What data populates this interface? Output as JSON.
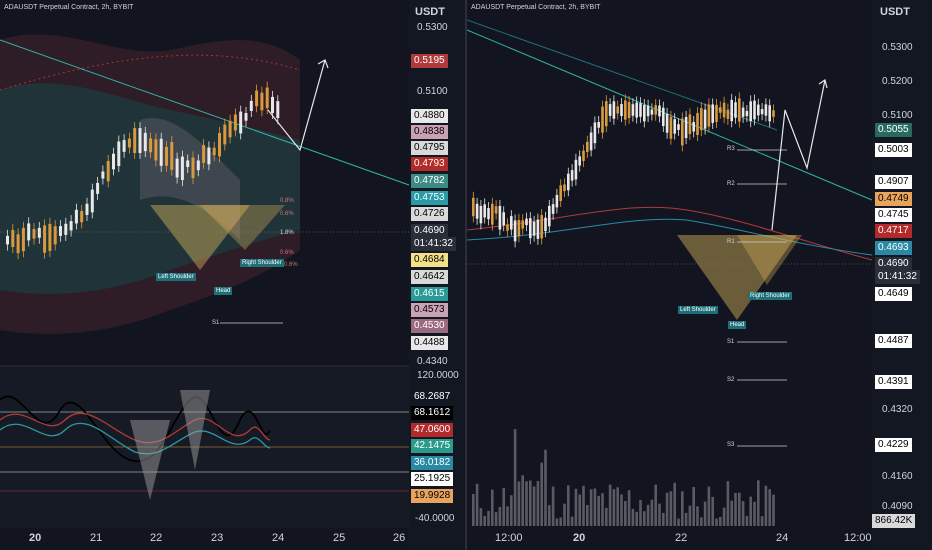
{
  "left": {
    "title": "ADAUSDT Perpetual Contract, 2h, BYBIT",
    "currency": "USDT",
    "price_ticks": [
      "0.5300",
      "0.5100",
      "0.4340"
    ],
    "badges": [
      {
        "value": "0.5195",
        "bg": "#b03a3a",
        "fg": "#ffffff"
      },
      {
        "value": "0.4880",
        "bg": "#e8e8e8",
        "fg": "#000000"
      },
      {
        "value": "0.4838",
        "bg": "#caa1b2",
        "fg": "#000000"
      },
      {
        "value": "0.4795",
        "bg": "#d9d9d9",
        "fg": "#000000"
      },
      {
        "value": "0.4793",
        "bg": "#b32a2a",
        "fg": "#ffffff"
      },
      {
        "value": "0.4782",
        "bg": "#3c8a84",
        "fg": "#ffffff"
      },
      {
        "value": "0.4753",
        "bg": "#2a9aa6",
        "fg": "#ffffff"
      },
      {
        "value": "0.4726",
        "bg": "#d9d9d9",
        "fg": "#000000"
      },
      {
        "value": "0.4690",
        "bg": "#2a2e39",
        "fg": "#ffffff"
      },
      {
        "value": "01:41:32",
        "bg": "#2a2e39",
        "fg": "#ffffff"
      },
      {
        "value": "0.4684",
        "bg": "#f5e08a",
        "fg": "#000000"
      },
      {
        "value": "0.4642",
        "bg": "#d9d9d9",
        "fg": "#000000"
      },
      {
        "value": "0.4615",
        "bg": "#2a9a96",
        "fg": "#ffffff"
      },
      {
        "value": "0.4573",
        "bg": "#c9a2b6",
        "fg": "#000000"
      },
      {
        "value": "0.4530",
        "bg": "#9c6a7e",
        "fg": "#ffffff"
      },
      {
        "value": "0.4488",
        "bg": "#e8e8e8",
        "fg": "#000000"
      }
    ],
    "osc_ticks": [
      "120.0000",
      "-40.0000"
    ],
    "osc_badges": [
      {
        "value": "68.2687",
        "bg": "#131722",
        "fg": "#ffffff"
      },
      {
        "value": "68.1612",
        "bg": "#000000",
        "fg": "#ffffff"
      },
      {
        "value": "47.0600",
        "bg": "#b32a2a",
        "fg": "#ffffff"
      },
      {
        "value": "42.1475",
        "bg": "#2a9a8a",
        "fg": "#ffffff"
      },
      {
        "value": "36.0182",
        "bg": "#2a8aa6",
        "fg": "#ffffff"
      },
      {
        "value": "25.1925",
        "bg": "#ffffff",
        "fg": "#000000"
      },
      {
        "value": "19.9928",
        "bg": "#e8a35c",
        "fg": "#000000"
      }
    ],
    "time_labels": [
      "20",
      "21",
      "22",
      "23",
      "24",
      "25",
      "26"
    ],
    "patterns": {
      "left_shoulder": "Left Shoulder",
      "head": "Head",
      "right_shoulder": "Right Shoulder",
      "s1": "S1"
    },
    "pct": [
      "0.8%",
      "0.6%",
      "1.8%",
      "0.6%",
      "0.6%"
    ]
  },
  "right": {
    "title": "ADAUSDT Perpetual Contract, 2h, BYBIT",
    "currency": "USDT",
    "price_ticks": [
      "0.5300",
      "0.5200",
      "0.5100",
      "0.4320",
      "0.4160",
      "0.4090"
    ],
    "badges": [
      {
        "value": "0.5055",
        "bg": "#2a6a5e",
        "fg": "#ffffff"
      },
      {
        "value": "0.5003",
        "bg": "#ffffff",
        "fg": "#000000"
      },
      {
        "value": "0.4907",
        "bg": "#ffffff",
        "fg": "#000000"
      },
      {
        "value": "0.4749",
        "bg": "#e8a35c",
        "fg": "#000000"
      },
      {
        "value": "0.4745",
        "bg": "#ffffff",
        "fg": "#000000"
      },
      {
        "value": "0.4717",
        "bg": "#b32a2a",
        "fg": "#ffffff"
      },
      {
        "value": "0.4693",
        "bg": "#2a8aa6",
        "fg": "#ffffff"
      },
      {
        "value": "0.4690",
        "bg": "#2a2e39",
        "fg": "#ffffff"
      },
      {
        "value": "01:41:32",
        "bg": "#2a2e39",
        "fg": "#ffffff"
      },
      {
        "value": "0.4649",
        "bg": "#ffffff",
        "fg": "#000000"
      },
      {
        "value": "0.4487",
        "bg": "#ffffff",
        "fg": "#000000"
      },
      {
        "value": "0.4391",
        "bg": "#ffffff",
        "fg": "#000000"
      },
      {
        "value": "0.4229",
        "bg": "#ffffff",
        "fg": "#000000"
      },
      {
        "value": "866.42K",
        "bg": "#d9d9d9",
        "fg": "#000000"
      }
    ],
    "time_labels": [
      "12:00",
      "20",
      "22",
      "24",
      "12:00"
    ],
    "patterns": {
      "left_shoulder": "Left Shoulder",
      "head": "Head",
      "right_shoulder": "Right Shoulder"
    },
    "levels": [
      "R3",
      "R2",
      "R1",
      "S1",
      "S2",
      "S3"
    ]
  }
}
